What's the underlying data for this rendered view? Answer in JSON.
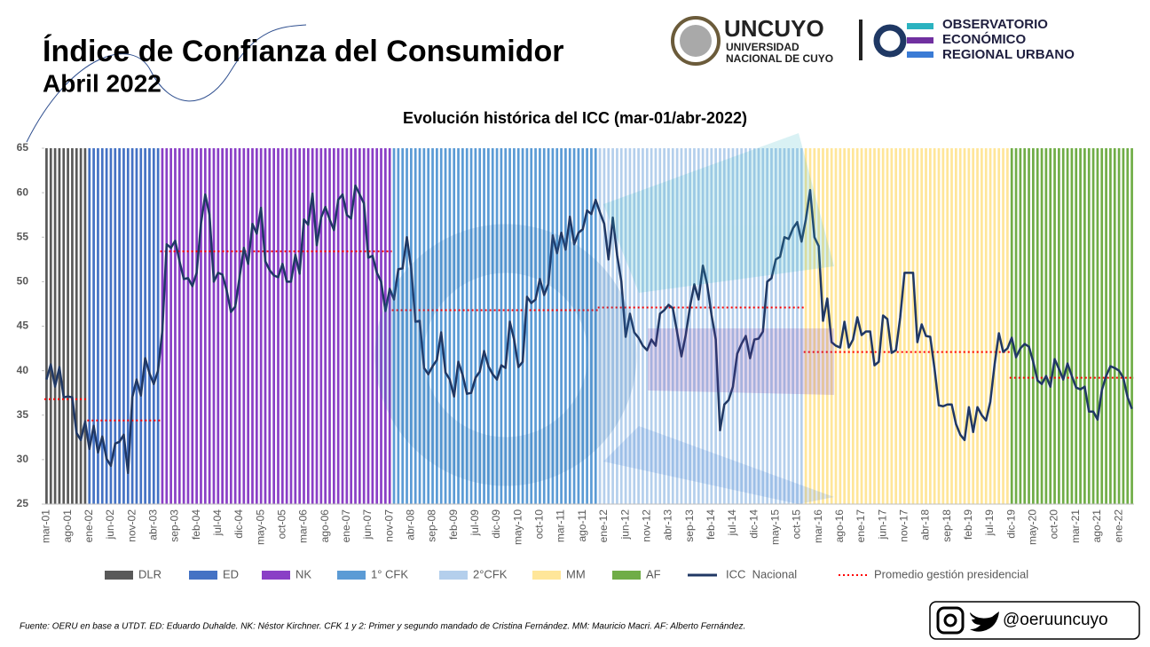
{
  "header": {
    "title": "Índice de Confianza del Consumidor",
    "subtitle": "Abril 2022"
  },
  "logos": {
    "university": "UNCUYO",
    "university_lines": [
      "UNIVERSIDAD",
      "NACIONAL DE CUYO"
    ],
    "observatory_lines": [
      "OBSERVATORIO",
      "ECONÓMICO",
      "REGIONAL URBANO"
    ]
  },
  "chart_data": {
    "type": "line",
    "title": "Evolución histórica del ICC (mar-01/abr-2022)",
    "categories": [
      "mar-01",
      null,
      null,
      null,
      null,
      "ago-01",
      null,
      null,
      null,
      null,
      "ene-02",
      null,
      null,
      null,
      null,
      "jun-02",
      null,
      null,
      null,
      null,
      "nov-02",
      null,
      null,
      null,
      null,
      "abr-03",
      null,
      null,
      null,
      null,
      "sep-03",
      null,
      null,
      null,
      null,
      "feb-04",
      null,
      null,
      null,
      null,
      "jul-04",
      null,
      null,
      null,
      null,
      "dic-04",
      null,
      null,
      null,
      null,
      "may-05",
      null,
      null,
      null,
      null,
      "oct-05",
      null,
      null,
      null,
      null,
      "mar-06",
      null,
      null,
      null,
      null,
      "ago-06",
      null,
      null,
      null,
      null,
      "ene-07",
      null,
      null,
      null,
      null,
      "jun-07",
      null,
      null,
      null,
      null,
      "nov-07",
      null,
      null,
      null,
      null,
      "abr-08",
      null,
      null,
      null,
      null,
      "sep-08",
      null,
      null,
      null,
      null,
      "feb-09",
      null,
      null,
      null,
      null,
      "jul-09",
      null,
      null,
      null,
      null,
      "dic-09",
      null,
      null,
      null,
      null,
      "may-10",
      null,
      null,
      null,
      null,
      "oct-10",
      null,
      null,
      null,
      null,
      "mar-11",
      null,
      null,
      null,
      null,
      "ago-11",
      null,
      null,
      null,
      null,
      "ene-12",
      null,
      null,
      null,
      null,
      "jun-12",
      null,
      null,
      null,
      null,
      "nov-12",
      null,
      null,
      null,
      null,
      "abr-13",
      null,
      null,
      null,
      null,
      "sep-13",
      null,
      null,
      null,
      null,
      "feb-14",
      null,
      null,
      null,
      null,
      "jul-14",
      null,
      null,
      null,
      null,
      "dic-14",
      null,
      null,
      null,
      null,
      "may-15",
      null,
      null,
      null,
      null,
      "oct-15",
      null,
      null,
      null,
      null,
      "mar-16",
      null,
      null,
      null,
      null,
      "ago-16",
      null,
      null,
      null,
      null,
      "ene-17",
      null,
      null,
      null,
      null,
      "jun-17",
      null,
      null,
      null,
      null,
      "nov-17",
      null,
      null,
      null,
      null,
      "abr-18",
      null,
      null,
      null,
      null,
      "sep-18",
      null,
      null,
      null,
      null,
      "feb-19",
      null,
      null,
      null,
      null,
      "jul-19",
      null,
      null,
      null,
      null,
      "dic-19",
      null,
      null,
      null,
      null,
      "may-20",
      null,
      null,
      null,
      null,
      "oct-20",
      null,
      null,
      null,
      null,
      "mar-21",
      null,
      null,
      null,
      null,
      "ago-21",
      null,
      null,
      null,
      null,
      "ene-22",
      null,
      null,
      null
    ],
    "series": [
      {
        "name": "ICC  Nacional",
        "color": "#203864",
        "values": [
          39,
          40.7,
          38.2,
          40.4,
          37,
          37.1,
          37,
          33,
          32.2,
          34.3,
          31.2,
          33.8,
          30.8,
          32.6,
          30.1,
          29.3,
          31.8,
          32,
          32.8,
          28.5,
          37,
          39,
          37.2,
          41.4,
          39.7,
          38.5,
          40,
          44.5,
          54.2,
          53.8,
          54.6,
          52.3,
          50.3,
          50.4,
          49.5,
          51,
          56.5,
          59.8,
          57.5,
          50,
          51,
          50.8,
          49,
          46.6,
          47.2,
          50.5,
          53.8,
          52,
          56.5,
          55.4,
          58.3,
          52.3,
          51.3,
          50.7,
          50.5,
          52,
          50,
          50,
          53,
          50.9,
          57,
          56.4,
          59.9,
          54.1,
          57.2,
          58.4,
          57,
          55.8,
          59.2,
          59.8,
          57.5,
          57.1,
          60.8,
          59.8,
          58.8,
          52.7,
          52.9,
          51,
          50,
          46.7,
          49.2,
          48,
          51.4,
          51.5,
          55,
          51.5,
          45.5,
          45.6,
          40.3,
          39.6,
          40.5,
          41.2,
          44.3,
          39.8,
          39,
          37.1,
          41,
          39.5,
          37.4,
          37.5,
          39.2,
          39.9,
          42.2,
          40.5,
          39.6,
          39,
          40.6,
          40.3,
          45.5,
          43.5,
          40.4,
          41,
          48.3,
          47.6,
          48,
          50.3,
          48.5,
          49.8,
          55.2,
          53.2,
          55.5,
          53.6,
          57.3,
          54.2,
          55.5,
          55.9,
          58,
          57.6,
          59.2,
          57.8,
          56.5,
          52.5,
          57.2,
          53,
          50,
          43.8,
          46.4,
          44.3,
          43.7,
          42.8,
          42.3,
          43.5,
          42.8,
          46.4,
          46.8,
          47.4,
          47,
          44.3,
          41.6,
          44,
          47.2,
          49.7,
          48,
          51.8,
          49.7,
          46.3,
          43.5,
          33.3,
          36.2,
          36.7,
          38.2,
          41.9,
          43,
          43.9,
          41.4,
          43.5,
          43.6,
          44.4,
          50,
          50.4,
          52.5,
          52.8,
          55,
          54.8,
          56,
          56.7,
          54.5,
          57,
          60.3,
          55,
          54,
          45.6,
          48.1,
          43.2,
          42.8,
          42.6,
          45.5,
          42.6,
          43.5,
          46,
          44,
          44.4,
          44.4,
          40.6,
          41,
          46.2,
          45.8,
          42,
          42.3,
          46,
          51,
          51,
          51,
          43.2,
          45.2,
          43.9,
          43.8,
          40.2,
          36.1,
          36,
          36.2,
          36.2,
          34,
          32.8,
          32.2,
          35.9,
          33.1,
          35.9,
          35,
          34.4,
          36.5,
          40.7,
          44.2,
          42.1,
          42.5,
          43.7,
          41.5,
          42.5,
          43,
          42.7,
          41,
          38.9,
          38.5,
          39.4,
          38.2,
          41.3,
          40.2,
          39,
          40.8,
          39.4,
          38.1,
          37.9,
          38.2,
          35.4,
          35.4,
          34.5,
          37.8,
          39.4,
          40.5,
          40.3,
          40,
          39.2,
          37,
          35.7
        ]
      }
    ],
    "periods": [
      {
        "name": "DLR",
        "color": "#595959",
        "months": 10,
        "average": 36.8
      },
      {
        "name": "ED",
        "color": "#4472c4",
        "months": 17,
        "average": 34.4
      },
      {
        "name": "NK",
        "color": "#8a3fc6",
        "months": 54,
        "average": 53.4
      },
      {
        "name": "1° CFK",
        "color": "#5b9bd5",
        "months": 48,
        "average": 46.8
      },
      {
        "name": "2°CFK",
        "color": "#b4cfec",
        "months": 48,
        "average": 47.1
      },
      {
        "name": "MM",
        "color": "#ffe699",
        "months": 48,
        "average": 42.1
      },
      {
        "name": "AF",
        "color": "#70ad47",
        "months": 29,
        "average": 39.2
      }
    ],
    "average_name": "Promedio gestión presidencial",
    "average_color": "#ff0000",
    "ylim": [
      25,
      65
    ],
    "yticks": [
      25,
      30,
      35,
      40,
      45,
      50,
      55,
      60,
      65
    ]
  },
  "footer": {
    "source": "Fuente: OERU en base a UTDT. ED: Eduardo Duhalde. NK: Néstor Kirchner. CFK 1 y 2: Primer y segundo mandado de Cristina Fernández. MM: Mauricio Macri. AF: Alberto Fernández.",
    "handle": "@oeruuncuyo"
  }
}
